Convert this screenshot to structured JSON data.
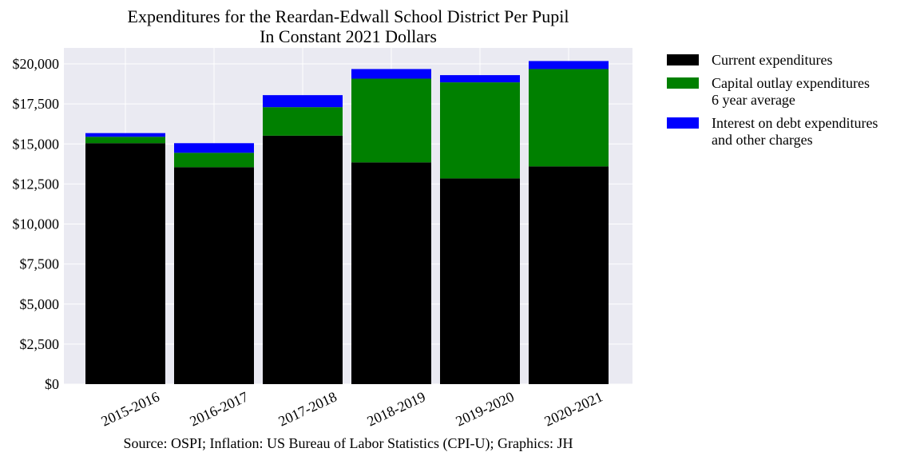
{
  "chart_data": {
    "type": "bar",
    "stacked": true,
    "title": [
      "Expenditures for the Reardan-Edwall School District Per Pupil",
      "In Constant 2021 Dollars"
    ],
    "xlabel": "",
    "ylabel": "",
    "ylim": [
      0,
      21000
    ],
    "yticks": [
      0,
      2500,
      5000,
      7500,
      10000,
      12500,
      15000,
      17500,
      20000
    ],
    "ytick_labels": [
      "$0",
      "$2,500",
      "$5,000",
      "$7,500",
      "$10,000",
      "$12,500",
      "$15,000",
      "$17,500",
      "$20,000"
    ],
    "categories": [
      "2015-2016",
      "2016-2017",
      "2017-2018",
      "2018-2019",
      "2019-2020",
      "2020-2021"
    ],
    "series": [
      {
        "name": "Current expenditures",
        "color": "#000000",
        "values": [
          15050,
          13550,
          15520,
          13850,
          12850,
          13600
        ]
      },
      {
        "name": "Capital outlay expenditures\n6 year average",
        "color": "#008000",
        "values": [
          400,
          900,
          1780,
          5230,
          6000,
          6080
        ]
      },
      {
        "name": "Interest on debt expenditures\nand other charges",
        "color": "#0000ff",
        "values": [
          230,
          600,
          750,
          600,
          450,
          500
        ]
      }
    ],
    "grid": true,
    "legend_position": "outside-right-top",
    "plot_background": "#eaeaf2",
    "source": "Source: OSPI; Inflation: US Bureau of Labor Statistics (CPI-U); Graphics: JH"
  }
}
